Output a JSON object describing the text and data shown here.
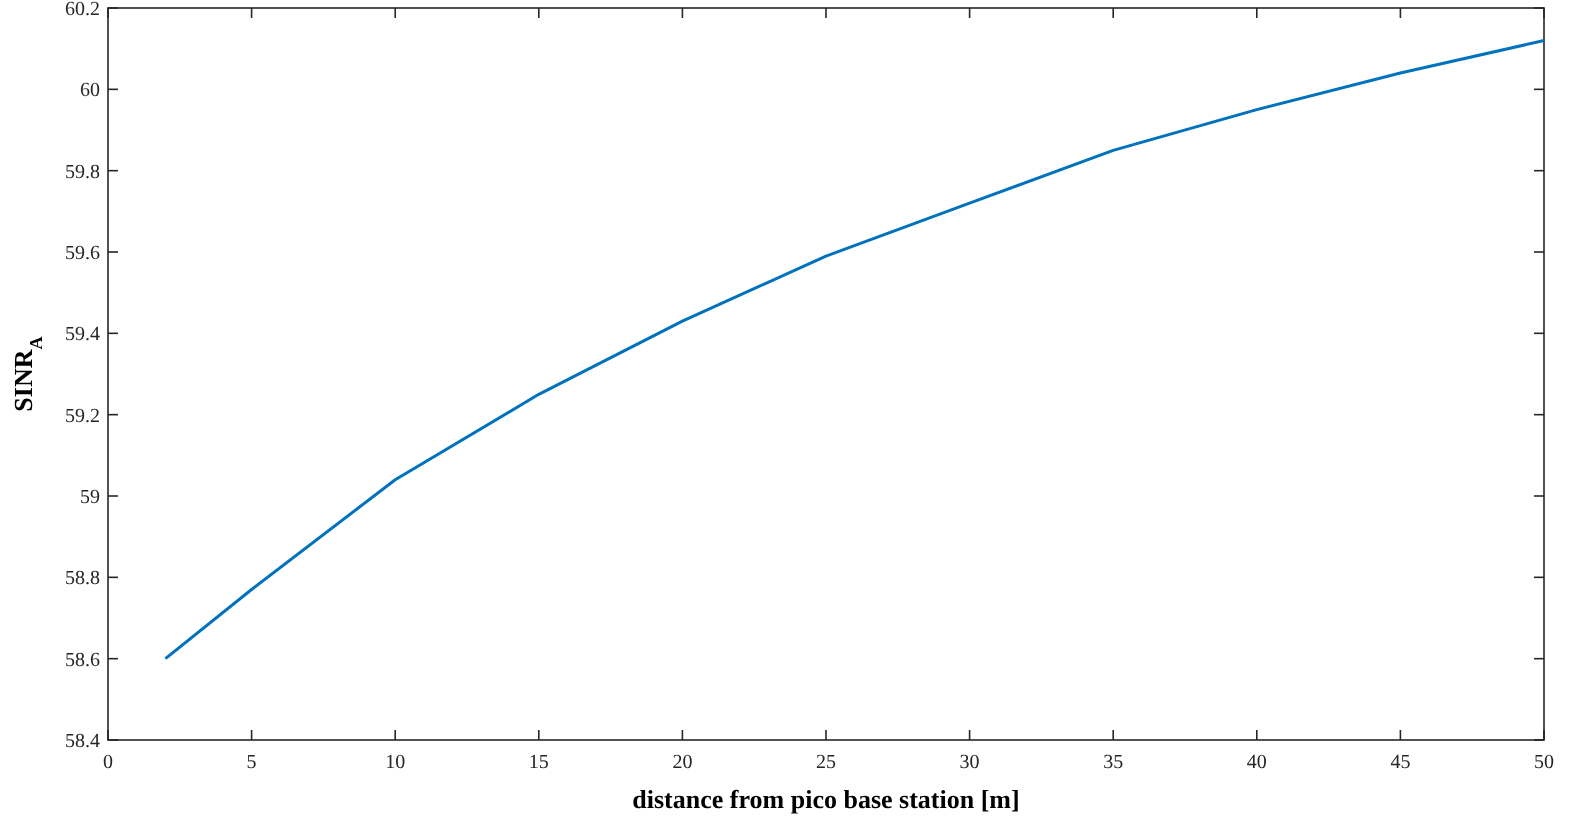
{
  "chart_data": {
    "type": "line",
    "xlabel": "distance from pico base station [m]",
    "ylabel": "SINR$_{A}$",
    "x": [
      2,
      5,
      10,
      15,
      20,
      25,
      30,
      35,
      40,
      45,
      50
    ],
    "series": [
      {
        "color": "#0072bd",
        "values": [
          58.6,
          58.77,
          59.04,
          59.25,
          59.43,
          59.59,
          59.72,
          59.85,
          59.95,
          60.04,
          60.12
        ]
      }
    ],
    "xlim": [
      0,
      50
    ],
    "xticks": [
      0,
      5,
      10,
      15,
      20,
      25,
      30,
      35,
      40,
      45,
      50
    ],
    "ylim": [
      58.4,
      60.2
    ],
    "yticks": [
      {
        "value": 58.4,
        "label": "58.4"
      },
      {
        "value": 58.6,
        "label": "58.6"
      },
      {
        "value": 58.8,
        "label": "58.8"
      },
      {
        "value": 59,
        "label": "59"
      },
      {
        "value": 59.2,
        "label": "59.2"
      },
      {
        "value": 59.4,
        "label": "59.4"
      },
      {
        "value": 59.6,
        "label": "59.6"
      },
      {
        "value": 59.8,
        "label": "59.8"
      },
      {
        "value": 60,
        "label": "60"
      },
      {
        "value": 60.2,
        "label": "60.2"
      }
    ],
    "grid": false,
    "marker": "none",
    "line_style": "solid"
  }
}
